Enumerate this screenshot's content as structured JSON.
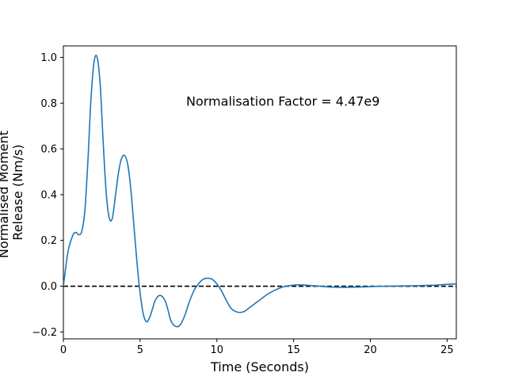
{
  "chart_data": {
    "type": "line",
    "title": "",
    "xlabel": "Time (Seconds)",
    "ylabel_lines": [
      "Normalised Moment",
      "Release (Nm/s)"
    ],
    "xlim": [
      0,
      25.6
    ],
    "ylim": [
      -0.23,
      1.05
    ],
    "xticks": [
      0,
      5,
      10,
      15,
      20,
      25
    ],
    "yticks": [
      -0.2,
      0.0,
      0.2,
      0.4,
      0.6,
      0.8,
      1.0
    ],
    "xtick_labels": [
      "0",
      "5",
      "10",
      "15",
      "20",
      "25"
    ],
    "ytick_labels": [
      "−0.2",
      "0.0",
      "0.2",
      "0.4",
      "0.6",
      "0.8",
      "1.0"
    ],
    "grid": false,
    "line_color": "#1f77b4",
    "reference_line": {
      "y": 0.0,
      "style": "dashed",
      "color": "#000000"
    },
    "annotation": {
      "text": "Normalisation Factor = 4.47e9",
      "x": 8.0,
      "y": 0.81
    },
    "series": [
      {
        "x": [
          0,
          0.3,
          0.6,
          0.8,
          1.0,
          1.2,
          1.4,
          1.6,
          1.8,
          2.0,
          2.2,
          2.4,
          2.6,
          2.8,
          3.0,
          3.2,
          3.4,
          3.6,
          3.8,
          4.0,
          4.2,
          4.4,
          4.6,
          4.8,
          5.0,
          5.2,
          5.4,
          5.6,
          5.8,
          6.0,
          6.3,
          6.6,
          6.8,
          7.0,
          7.3,
          7.6,
          7.9,
          8.2,
          8.5,
          8.8,
          9.1,
          9.4,
          9.7,
          10.0,
          10.3,
          10.6,
          10.9,
          11.2,
          11.5,
          11.8,
          12.1,
          12.5,
          12.9,
          13.3,
          13.7,
          14.1,
          14.5,
          14.9,
          15.3,
          15.7,
          16.1,
          16.5,
          17.0,
          17.5,
          18.0,
          19.0,
          20.0,
          21.0,
          22.0,
          23.0,
          24.0,
          25.0,
          25.6
        ],
        "y": [
          0.0,
          0.15,
          0.22,
          0.235,
          0.225,
          0.24,
          0.33,
          0.55,
          0.82,
          0.98,
          1.0,
          0.88,
          0.62,
          0.4,
          0.295,
          0.3,
          0.4,
          0.5,
          0.56,
          0.57,
          0.53,
          0.42,
          0.26,
          0.1,
          -0.03,
          -0.12,
          -0.155,
          -0.14,
          -0.1,
          -0.06,
          -0.04,
          -0.06,
          -0.1,
          -0.15,
          -0.175,
          -0.17,
          -0.13,
          -0.07,
          -0.02,
          0.01,
          0.03,
          0.035,
          0.03,
          0.01,
          -0.02,
          -0.06,
          -0.095,
          -0.11,
          -0.115,
          -0.11,
          -0.095,
          -0.075,
          -0.055,
          -0.035,
          -0.02,
          -0.008,
          0.0,
          0.004,
          0.006,
          0.005,
          0.003,
          0.001,
          -0.002,
          -0.004,
          -0.005,
          -0.004,
          -0.002,
          0.0,
          0.001,
          0.002,
          0.004,
          0.008,
          0.01
        ]
      }
    ]
  }
}
